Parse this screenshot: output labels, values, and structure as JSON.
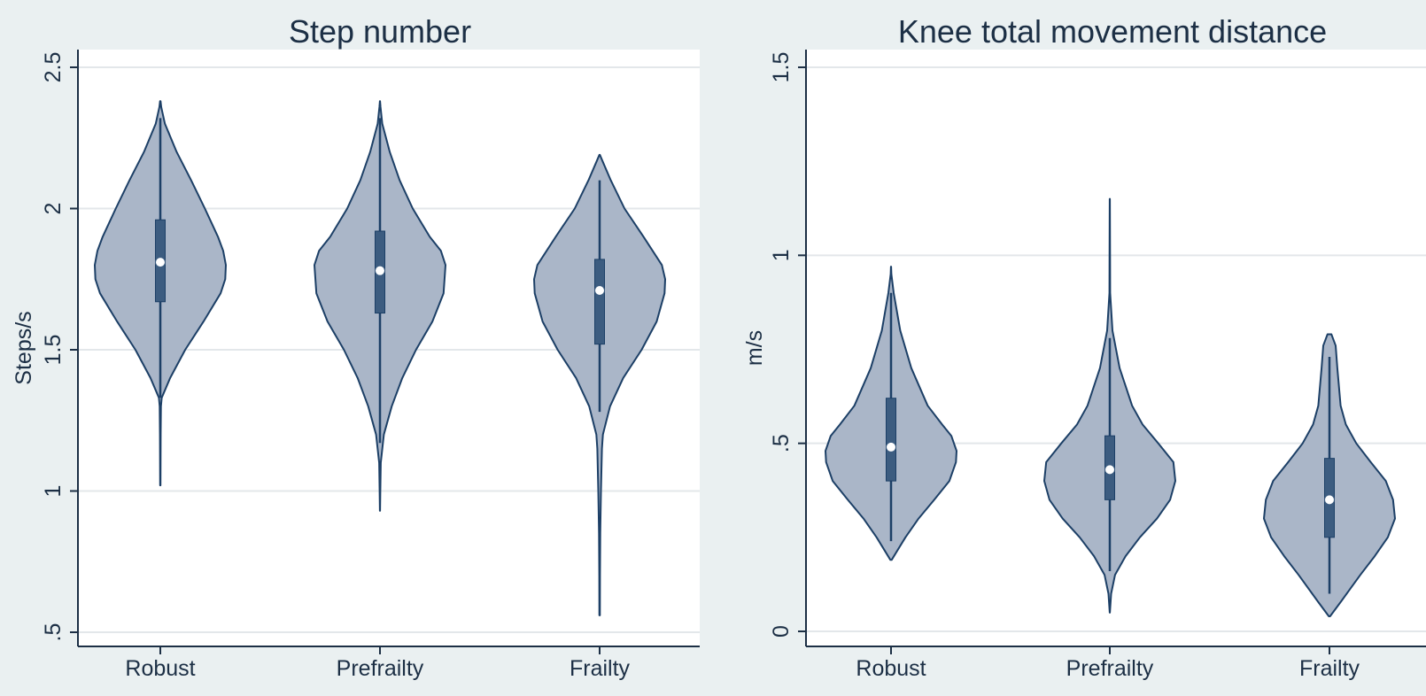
{
  "chart_data": [
    {
      "type": "violin",
      "title": "Step number",
      "xlabel": "",
      "ylabel": "Steps/s",
      "ylim": [
        0.5,
        2.5
      ],
      "yticks": [
        0.5,
        1,
        1.5,
        2,
        2.5
      ],
      "ytick_labels": [
        ".5",
        "1",
        "1.5",
        "2",
        "2.5"
      ],
      "grid": true,
      "categories": [
        "Robust",
        "Prefrailty",
        "Frailty"
      ],
      "groups": [
        {
          "category": "Robust",
          "median": 1.81,
          "q1": 1.67,
          "q3": 1.96,
          "whisker_low": 1.33,
          "whisker_high": 2.32,
          "density": [
            [
              1.02,
              0.003
            ],
            [
              1.2,
              0.006
            ],
            [
              1.3,
              0.01
            ],
            [
              1.33,
              0.022
            ],
            [
              1.4,
              0.15
            ],
            [
              1.5,
              0.38
            ],
            [
              1.6,
              0.66
            ],
            [
              1.7,
              0.92
            ],
            [
              1.75,
              0.99
            ],
            [
              1.8,
              1.0
            ],
            [
              1.85,
              0.96
            ],
            [
              1.9,
              0.88
            ],
            [
              2.0,
              0.68
            ],
            [
              2.1,
              0.47
            ],
            [
              2.2,
              0.25
            ],
            [
              2.3,
              0.07
            ],
            [
              2.36,
              0.014
            ],
            [
              2.38,
              0.004
            ]
          ]
        },
        {
          "category": "Prefrailty",
          "median": 1.78,
          "q1": 1.63,
          "q3": 1.92,
          "whisker_low": 1.17,
          "whisker_high": 2.32,
          "density": [
            [
              0.93,
              0.002
            ],
            [
              1.0,
              0.005
            ],
            [
              1.1,
              0.012
            ],
            [
              1.2,
              0.06
            ],
            [
              1.3,
              0.18
            ],
            [
              1.4,
              0.34
            ],
            [
              1.5,
              0.55
            ],
            [
              1.6,
              0.8
            ],
            [
              1.7,
              0.97
            ],
            [
              1.8,
              1.0
            ],
            [
              1.85,
              0.93
            ],
            [
              1.9,
              0.76
            ],
            [
              2.0,
              0.5
            ],
            [
              2.1,
              0.3
            ],
            [
              2.2,
              0.15
            ],
            [
              2.3,
              0.035
            ],
            [
              2.36,
              0.008
            ],
            [
              2.38,
              0.002
            ]
          ]
        },
        {
          "category": "Frailty",
          "median": 1.71,
          "q1": 1.52,
          "q3": 1.82,
          "whisker_low": 1.28,
          "whisker_high": 2.1,
          "density": [
            [
              0.56,
              0.004
            ],
            [
              0.7,
              0.006
            ],
            [
              0.85,
              0.01
            ],
            [
              1.0,
              0.02
            ],
            [
              1.15,
              0.035
            ],
            [
              1.2,
              0.05
            ],
            [
              1.3,
              0.16
            ],
            [
              1.4,
              0.36
            ],
            [
              1.5,
              0.64
            ],
            [
              1.6,
              0.87
            ],
            [
              1.7,
              0.99
            ],
            [
              1.75,
              1.0
            ],
            [
              1.8,
              0.95
            ],
            [
              1.9,
              0.67
            ],
            [
              2.0,
              0.38
            ],
            [
              2.1,
              0.17
            ],
            [
              2.17,
              0.04
            ],
            [
              2.19,
              0.004
            ]
          ]
        }
      ]
    },
    {
      "type": "violin",
      "title": "Knee total movement distance",
      "xlabel": "",
      "ylabel": "m/s",
      "ylim": [
        0,
        1.5
      ],
      "yticks": [
        0,
        0.5,
        1,
        1.5
      ],
      "ytick_labels": [
        "0",
        ".5",
        "1",
        "1.5"
      ],
      "grid": true,
      "categories": [
        "Robust",
        "Prefrailty",
        "Frailty"
      ],
      "groups": [
        {
          "category": "Robust",
          "median": 0.49,
          "q1": 0.4,
          "q3": 0.62,
          "whisker_low": 0.24,
          "whisker_high": 0.9,
          "density": [
            [
              0.19,
              0.01
            ],
            [
              0.25,
              0.22
            ],
            [
              0.3,
              0.42
            ],
            [
              0.35,
              0.66
            ],
            [
              0.4,
              0.89
            ],
            [
              0.45,
              0.99
            ],
            [
              0.48,
              1.0
            ],
            [
              0.52,
              0.92
            ],
            [
              0.55,
              0.78
            ],
            [
              0.6,
              0.56
            ],
            [
              0.7,
              0.31
            ],
            [
              0.8,
              0.14
            ],
            [
              0.9,
              0.04
            ],
            [
              0.95,
              0.006
            ],
            [
              0.97,
              0.002
            ]
          ]
        },
        {
          "category": "Prefrailty",
          "median": 0.43,
          "q1": 0.35,
          "q3": 0.52,
          "whisker_low": 0.16,
          "whisker_high": 0.78,
          "density": [
            [
              0.05,
              0.002
            ],
            [
              0.1,
              0.02
            ],
            [
              0.15,
              0.08
            ],
            [
              0.2,
              0.24
            ],
            [
              0.25,
              0.46
            ],
            [
              0.3,
              0.72
            ],
            [
              0.35,
              0.92
            ],
            [
              0.4,
              1.0
            ],
            [
              0.45,
              0.97
            ],
            [
              0.5,
              0.74
            ],
            [
              0.55,
              0.5
            ],
            [
              0.6,
              0.34
            ],
            [
              0.7,
              0.15
            ],
            [
              0.8,
              0.04
            ],
            [
              0.9,
              0.006
            ],
            [
              1.0,
              0.004
            ],
            [
              1.15,
              0.002
            ]
          ]
        },
        {
          "category": "Frailty",
          "median": 0.35,
          "q1": 0.25,
          "q3": 0.46,
          "whisker_low": 0.1,
          "whisker_high": 0.73,
          "density": [
            [
              0.04,
              0.01
            ],
            [
              0.08,
              0.18
            ],
            [
              0.15,
              0.47
            ],
            [
              0.2,
              0.69
            ],
            [
              0.25,
              0.89
            ],
            [
              0.3,
              1.0
            ],
            [
              0.35,
              0.97
            ],
            [
              0.4,
              0.86
            ],
            [
              0.45,
              0.63
            ],
            [
              0.5,
              0.41
            ],
            [
              0.55,
              0.25
            ],
            [
              0.6,
              0.17
            ],
            [
              0.7,
              0.12
            ],
            [
              0.76,
              0.095
            ],
            [
              0.79,
              0.03
            ]
          ]
        }
      ]
    }
  ]
}
